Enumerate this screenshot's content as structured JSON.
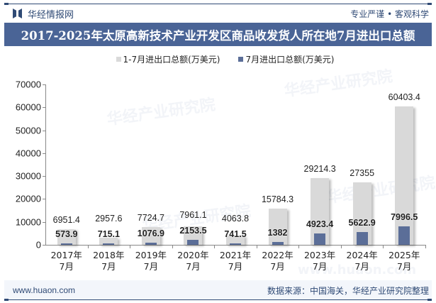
{
  "header": {
    "brand_name": "华经情报网",
    "slogan": "专业严谨 • 客观科学",
    "title": "2017-2025年太原高新技术产业开发区商品收发货人所在地7月进出口总额"
  },
  "legend": [
    {
      "label": "1-7月进出口总额(万美元)",
      "color": "#d9d9d9"
    },
    {
      "label": "7月进出口总额(万美元)",
      "color": "#5b6e98"
    }
  ],
  "y_axis": {
    "ticks": [
      "0",
      "10000",
      "20000",
      "30000",
      "40000",
      "50000",
      "60000",
      "70000"
    ]
  },
  "x_axis": {
    "labels": [
      {
        "year": "2017年",
        "month": "7月"
      },
      {
        "year": "2018年",
        "month": "7月"
      },
      {
        "year": "2019年",
        "month": "7月"
      },
      {
        "year": "2020年",
        "month": "7月"
      },
      {
        "year": "2021年",
        "month": "7月"
      },
      {
        "year": "2022年",
        "month": "7月"
      },
      {
        "year": "2023年",
        "month": "7月"
      },
      {
        "year": "2024年",
        "month": "7月"
      },
      {
        "year": "2025年",
        "month": "7月"
      }
    ]
  },
  "value_labels": {
    "total": [
      "6951.4",
      "2957.6",
      "7724.7",
      "7961.1",
      "4063.8",
      "15784.3",
      "29214.3",
      "27355",
      "60403.4"
    ],
    "month": [
      "573.9",
      "715.1",
      "1076.9",
      "2153.5",
      "741.5",
      "1382",
      "4923.4",
      "5622.9",
      "7996.5"
    ]
  },
  "watermark": {
    "text": "华经产业研究院",
    "url": "www.huaon.com"
  },
  "footer": {
    "website": "www.huaon.com",
    "source": "数据来源：中国海关，华经产业研究院整理"
  },
  "colors": {
    "title_bar": "#4a6496",
    "brand": "#2f4a75",
    "bar_total": "#d9d9d9",
    "bar_month": "#5b6e98"
  },
  "chart_data": {
    "type": "bar",
    "title": "2017-2025年太原高新技术产业开发区商品收发货人所在地7月进出口总额",
    "categories": [
      "2017年7月",
      "2018年7月",
      "2019年7月",
      "2020年7月",
      "2021年7月",
      "2022年7月",
      "2023年7月",
      "2024年7月",
      "2025年7月"
    ],
    "series": [
      {
        "name": "1-7月进出口总额(万美元)",
        "values": [
          6951.4,
          2957.6,
          7724.7,
          7961.1,
          4063.8,
          15784.3,
          29214.3,
          27355,
          60403.4
        ]
      },
      {
        "name": "7月进出口总额(万美元)",
        "values": [
          573.9,
          715.1,
          1076.9,
          2153.5,
          741.5,
          1382,
          4923.4,
          5622.9,
          7996.5
        ]
      }
    ],
    "xlabel": "",
    "ylabel": "",
    "ylim": [
      0,
      70000
    ],
    "yticks": [
      0,
      10000,
      20000,
      30000,
      40000,
      50000,
      60000,
      70000
    ],
    "grid": false,
    "legend_position": "top",
    "overlapping_bars": true
  }
}
